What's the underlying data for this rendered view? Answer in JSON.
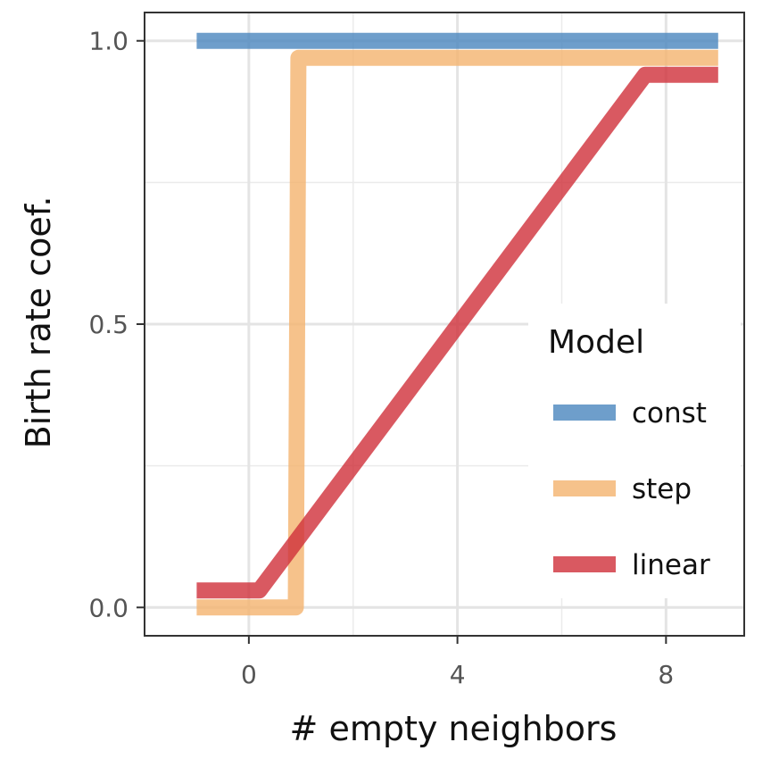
{
  "chart_data": {
    "type": "line",
    "title": "",
    "xlabel": "# empty neighbors",
    "ylabel": "Birth rate coef.",
    "xlim": [
      -2,
      9.5
    ],
    "ylim": [
      -0.05,
      1.05
    ],
    "x_ticks": [
      0,
      4,
      8
    ],
    "x_tick_labels": [
      "0",
      "4",
      "8"
    ],
    "y_ticks": [
      0.0,
      0.5,
      1.0
    ],
    "y_tick_labels": [
      "0.0",
      "0.5",
      "1.0"
    ],
    "x_minor": [
      2,
      6
    ],
    "y_minor": [
      0.25,
      0.75
    ],
    "grid": true,
    "legend": {
      "title": "Model",
      "placement": "inside-right"
    },
    "series": [
      {
        "name": "const",
        "color": "#4a86be",
        "x": [
          -1,
          9
        ],
        "y": [
          1.0,
          1.0
        ]
      },
      {
        "name": "step",
        "color": "#f4b36e",
        "x": [
          -1,
          0.9,
          0.95,
          9
        ],
        "y": [
          0.0,
          0.0,
          0.97,
          0.97
        ]
      },
      {
        "name": "linear",
        "color": "#cf3039",
        "x": [
          -1,
          0.2,
          7.6,
          9
        ],
        "y": [
          0.03,
          0.03,
          0.94,
          0.94
        ]
      }
    ]
  }
}
